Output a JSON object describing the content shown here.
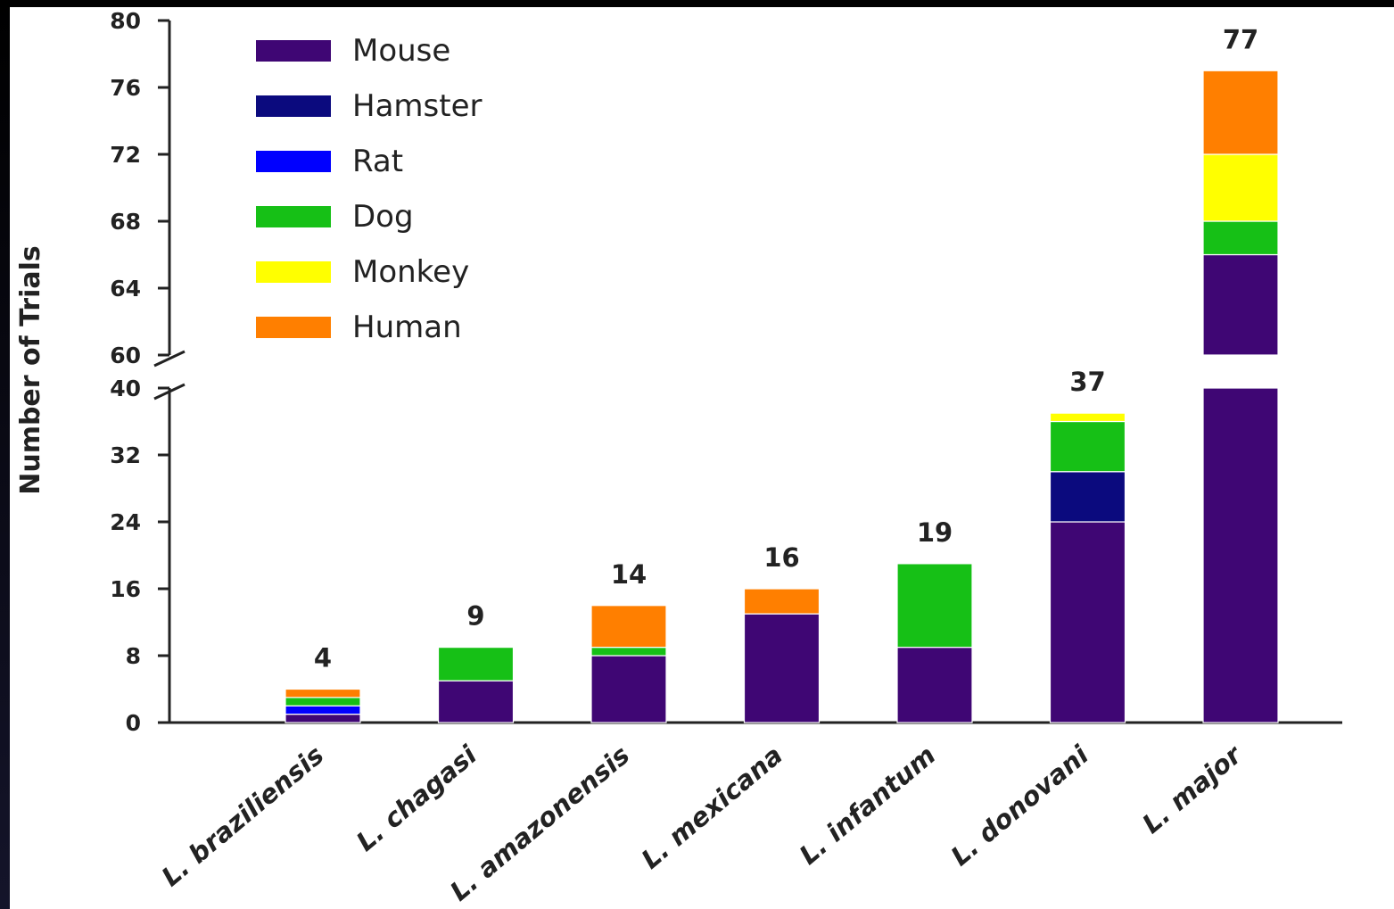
{
  "chart_data": {
    "type": "bar",
    "stacked": true,
    "ylabel": "Number of Trials",
    "xlabel": "",
    "title": "",
    "broken_axis": {
      "lower": [
        0,
        40
      ],
      "upper": [
        60,
        80
      ],
      "lower_ticks": [
        0,
        8,
        16,
        24,
        32,
        40
      ],
      "upper_ticks": [
        60,
        64,
        68,
        72,
        76,
        80
      ]
    },
    "categories": [
      "L. braziliensis",
      "L. chagasi",
      "L. amazonensis",
      "L. mexicana",
      "L. infantum",
      "L. donovani",
      "L. major"
    ],
    "totals": [
      4,
      9,
      14,
      16,
      19,
      37,
      77
    ],
    "series": [
      {
        "name": "Mouse",
        "color": "#3f0674",
        "values": [
          1,
          5,
          8,
          13,
          9,
          24,
          66
        ]
      },
      {
        "name": "Hamster",
        "color": "#0b0a7e",
        "values": [
          0,
          0,
          0,
          0,
          0,
          6,
          0
        ]
      },
      {
        "name": "Rat",
        "color": "#0000ff",
        "values": [
          1,
          0,
          0,
          0,
          0,
          0,
          0
        ]
      },
      {
        "name": "Dog",
        "color": "#16c016",
        "values": [
          1,
          4,
          1,
          0,
          10,
          6,
          2
        ]
      },
      {
        "name": "Monkey",
        "color": "#ffff00",
        "values": [
          0,
          0,
          0,
          0,
          0,
          1,
          4
        ]
      },
      {
        "name": "Human",
        "color": "#ff7f00",
        "values": [
          1,
          0,
          5,
          3,
          0,
          0,
          5
        ]
      }
    ],
    "legend_position": "top-left",
    "grid": false
  }
}
